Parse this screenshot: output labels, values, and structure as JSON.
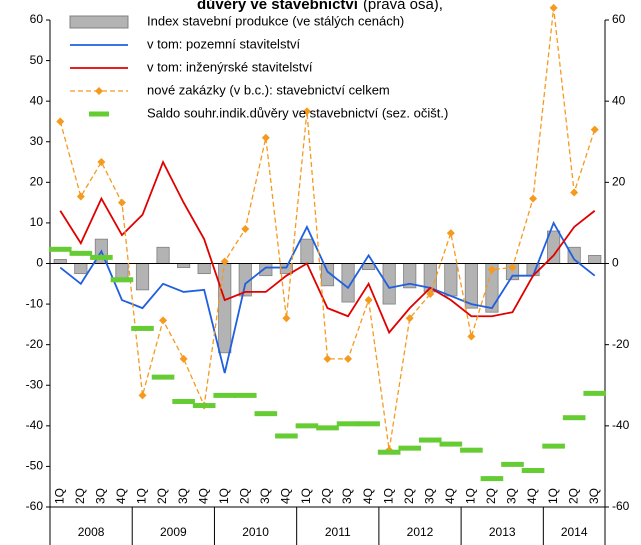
{
  "chart_data": {
    "type": "bar",
    "title": "důvěry ve stavebnictví",
    "subtitle": "(pravá osa),",
    "categories": [
      "1Q",
      "2Q",
      "3Q",
      "4Q",
      "1Q",
      "2Q",
      "3Q",
      "4Q",
      "1Q",
      "2Q",
      "3Q",
      "4Q",
      "1Q",
      "2Q",
      "3Q",
      "4Q",
      "1Q",
      "2Q",
      "3Q",
      "4Q",
      "1Q",
      "2Q",
      "3Q",
      "4Q",
      "1Q",
      "2Q",
      "3Q"
    ],
    "years": [
      "2008",
      "2009",
      "2010",
      "2011",
      "2012",
      "2013",
      "2014"
    ],
    "ylim": [
      -60,
      60
    ],
    "yticks": [
      60,
      50,
      40,
      30,
      20,
      10,
      0,
      -10,
      -20,
      -30,
      -40,
      -50,
      -60
    ],
    "y2lim": [
      -60,
      60
    ],
    "y2ticks": [
      60,
      40,
      20,
      0,
      -20,
      -40,
      -60
    ],
    "series": [
      {
        "name": "Index stavební produkce (ve stálých cenách)",
        "type": "bar",
        "color": "#b3b3b3",
        "values": [
          1,
          -2.5,
          6,
          -4.5,
          -6.5,
          4,
          -1,
          -2.5,
          -22,
          -8,
          -3,
          -2.5,
          6,
          -5.5,
          -9.5,
          -1.5,
          -10,
          -6,
          -7,
          -8,
          -11,
          -12,
          -4,
          -3,
          8,
          4,
          2
        ]
      },
      {
        "name": "v tom: pozemní stavitelství",
        "type": "line",
        "color": "#1f5fe0",
        "values": [
          -1,
          -5,
          3,
          -9,
          -11,
          -5,
          -7,
          -6.5,
          -27,
          -5,
          -1,
          -1,
          9,
          -2,
          -6,
          2,
          -6,
          -5,
          -6,
          -8,
          -10,
          -11,
          -3,
          -3,
          10,
          1,
          -3
        ]
      },
      {
        "name": "v tom: inženýrské stavitelství",
        "type": "line",
        "color": "#e00000",
        "values": [
          13,
          5,
          16,
          7,
          12,
          25,
          15,
          6,
          -9,
          -7,
          -7,
          -3,
          0,
          -11,
          -13,
          -5,
          -17,
          -11,
          -6,
          -9,
          -13,
          -13,
          -12,
          -3,
          2,
          9,
          13
        ]
      },
      {
        "name": "nové zakázky (v b.c.): stavebnictví celkem",
        "type": "line",
        "dashed": true,
        "marker": "diamond",
        "color": "#f59a1e",
        "axis": "y2",
        "values": [
          35,
          16.5,
          25,
          15,
          -32.5,
          -14,
          -23.5,
          -35,
          0.5,
          8.5,
          31,
          -13.5,
          37.5,
          -23.5,
          -23.5,
          -9,
          -46,
          -13.5,
          -7.5,
          7.5,
          -18,
          -1.5,
          -1,
          16,
          63,
          17.5,
          33
        ]
      },
      {
        "name": "Saldo souhr.indik.důvěry ve stavebnictví (sez. očišt.)",
        "type": "dash",
        "color": "#66cc33",
        "axis": "y2",
        "values": [
          3.5,
          2.5,
          1.5,
          -4,
          -16,
          -28,
          -34,
          -35,
          -32.5,
          -32.5,
          -37,
          -42.5,
          -40,
          -40.5,
          -39.5,
          -39.5,
          -46.5,
          -45.5,
          -43.5,
          -44.5,
          -46,
          -53,
          -49.5,
          -51,
          -45,
          -38,
          -32
        ]
      }
    ]
  }
}
